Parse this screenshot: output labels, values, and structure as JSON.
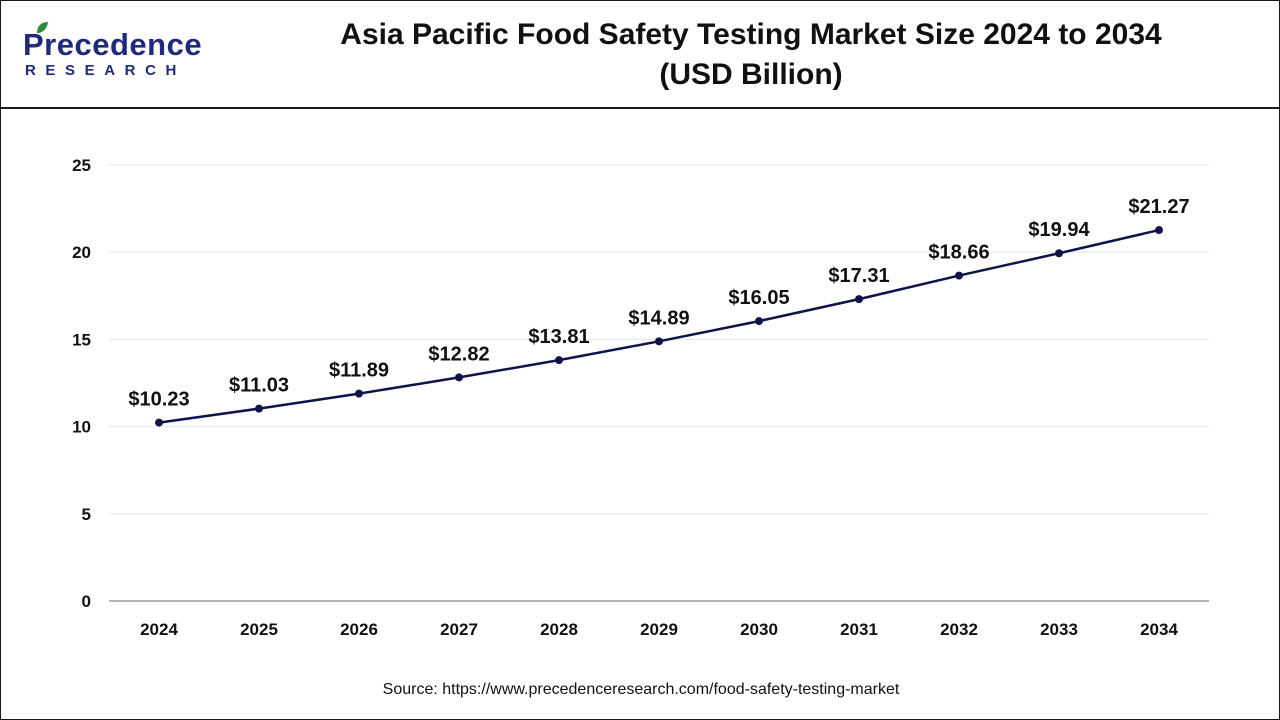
{
  "header": {
    "logo_word": "Precedence",
    "logo_sub": "RESEARCH",
    "title_line1": "Asia Pacific Food Safety Testing Market Size 2024 to 2034",
    "title_line2": "(USD Billion)"
  },
  "colors": {
    "line": "#10134a",
    "brand": "#1f2a7a",
    "leaf": "#2a8c3a",
    "grid": "#e6e6e6",
    "axis": "#999999"
  },
  "chart_data": {
    "type": "line",
    "categories": [
      "2024",
      "2025",
      "2026",
      "2027",
      "2028",
      "2029",
      "2030",
      "2031",
      "2032",
      "2033",
      "2034"
    ],
    "values": [
      10.23,
      11.03,
      11.89,
      12.82,
      13.81,
      14.89,
      16.05,
      17.31,
      18.66,
      19.94,
      21.27
    ],
    "data_labels": [
      "$10.23",
      "$11.03",
      "$11.89",
      "$12.82",
      "$13.81",
      "$14.89",
      "$16.05",
      "$17.31",
      "$18.66",
      "$19.94",
      "$21.27"
    ],
    "y_ticks": [
      "0",
      "5",
      "10",
      "15",
      "20",
      "25"
    ],
    "ylim": [
      0,
      25
    ],
    "grid": true,
    "legend": "none"
  },
  "source": "Source: https://www.precedenceresearch.com/food-safety-testing-market"
}
